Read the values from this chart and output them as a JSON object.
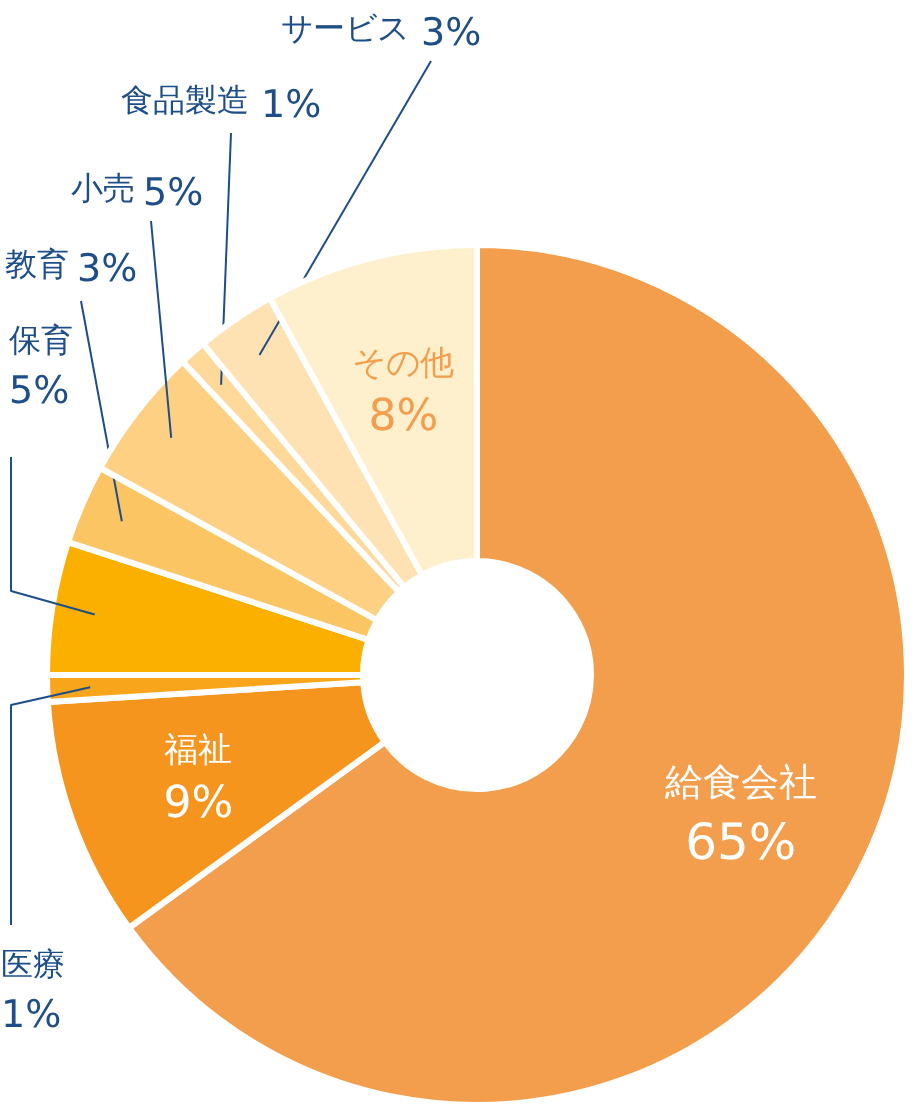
{
  "chart_data": {
    "type": "donut",
    "categories": [
      "給食会社",
      "福祉",
      "医療",
      "保育",
      "教育",
      "小売",
      "食品製造",
      "サービス",
      "その他"
    ],
    "values": [
      65,
      9,
      1,
      5,
      3,
      5,
      1,
      3,
      8
    ],
    "colors": [
      "#f29e4c",
      "#f6951e",
      "#f8a51b",
      "#fbb000",
      "#fcc563",
      "#fdd083",
      "#fed99a",
      "#fee2b3",
      "#fff0cd"
    ],
    "value_labels": [
      "65%",
      "9%",
      "1%",
      "5%",
      "3%",
      "5%",
      "1%",
      "3%",
      "8%"
    ]
  }
}
